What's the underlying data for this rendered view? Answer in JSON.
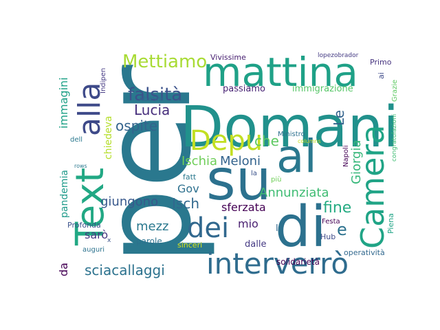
{
  "word_cloud": {
    "words": [
      {
        "text": "per",
        "color": "#2a788e"
      },
      {
        "text": "Domani",
        "color": "#21918c"
      },
      {
        "text": "su",
        "color": "#2c718e"
      },
      {
        "text": "al",
        "color": "#2a788e"
      },
      {
        "text": "di",
        "color": "#2c718e"
      },
      {
        "text": "mattina",
        "color": "#1fa187"
      },
      {
        "text": "Text",
        "color": "#22a884"
      },
      {
        "text": "alla",
        "color": "#3e4a89"
      },
      {
        "text": "Camera",
        "color": "#20a486"
      },
      {
        "text": "interverrò",
        "color": "#2f6c8e"
      },
      {
        "text": "dei",
        "color": "#31688e"
      },
      {
        "text": "Depu",
        "color": "#c2df23"
      },
      {
        "text": "Mettiamo",
        "color": "#a8db34"
      },
      {
        "text": "falsità",
        "color": "#3b528b"
      },
      {
        "text": "Lucia",
        "color": "#472f7d"
      },
      {
        "text": "ospite",
        "color": "#33638d"
      },
      {
        "text": "che",
        "color": "#5ec962"
      },
      {
        "text": "Le",
        "color": "#33638d"
      },
      {
        "text": "Ischia",
        "color": "#6ece58"
      },
      {
        "text": "Meloni",
        "color": "#33638d"
      },
      {
        "text": "Giorgia",
        "color": "#35b779"
      },
      {
        "text": "Annunziata",
        "color": "#3fbc73"
      },
      {
        "text": "fine",
        "color": "#25ab82"
      },
      {
        "text": "Gov",
        "color": "#2d708e"
      },
      {
        "text": "giungono",
        "color": "#38588c"
      },
      {
        "text": "Isch",
        "color": "#31688e"
      },
      {
        "text": "sferzata",
        "color": "#440154"
      },
      {
        "text": "e",
        "color": "#2c728e"
      },
      {
        "text": "mio",
        "color": "#481f70"
      },
      {
        "text": "mezz",
        "color": "#2a788e"
      },
      {
        "text": "sarò",
        "color": "#453781"
      },
      {
        "text": "sciacallaggi",
        "color": "#2c728e"
      },
      {
        "text": "da",
        "color": "#440154"
      },
      {
        "text": "immagini",
        "color": "#1fa187"
      },
      {
        "text": "pandemia",
        "color": "#1f9a8a"
      },
      {
        "text": "chiedeva",
        "color": "#b5de2b"
      },
      {
        "text": "passiamo",
        "color": "#482475"
      },
      {
        "text": "immigrazione",
        "color": "#56c667"
      },
      {
        "text": "Vivissime",
        "color": "#482071"
      },
      {
        "text": "lopezobrador",
        "color": "#443a83"
      },
      {
        "text": "Primo",
        "color": "#46337f"
      },
      {
        "text": "ai",
        "color": "#3e4a89"
      },
      {
        "text": "Grazie",
        "color": "#5ec962"
      },
      {
        "text": "congratulazioni",
        "color": "#3fbc73"
      },
      {
        "text": "Piena",
        "color": "#20a486"
      },
      {
        "text": "Indipen",
        "color": "#443983"
      },
      {
        "text": "AbeShi",
        "color": "#31688e"
      },
      {
        "text": "Ministro",
        "color": "#2d708e"
      },
      {
        "text": "columns",
        "color": "#c8e020"
      },
      {
        "text": "Napoli",
        "color": "#440154"
      },
      {
        "text": "la",
        "color": "#3b528b"
      },
      {
        "text": "più",
        "color": "#6ece58"
      },
      {
        "text": "dell",
        "color": "#2a788e"
      },
      {
        "text": "rows",
        "color": "#2a788e"
      },
      {
        "text": "fatt",
        "color": "#2a788e"
      },
      {
        "text": "Profonda",
        "color": "#3b528b"
      },
      {
        "text": "parole",
        "color": "#2c728e"
      },
      {
        "text": "sinceri",
        "color": "#d8e219"
      },
      {
        "text": "dalle",
        "color": "#443983"
      },
      {
        "text": "x",
        "color": "#3b528b"
      },
      {
        "text": "auguri",
        "color": "#2c728e"
      },
      {
        "text": "l",
        "color": "#31688e"
      },
      {
        "text": "Hub",
        "color": "#3e4a89"
      },
      {
        "text": "Festa",
        "color": "#440154"
      },
      {
        "text": "operatività",
        "color": "#31688e"
      },
      {
        "text": "solidarietà",
        "color": "#440154"
      }
    ]
  }
}
